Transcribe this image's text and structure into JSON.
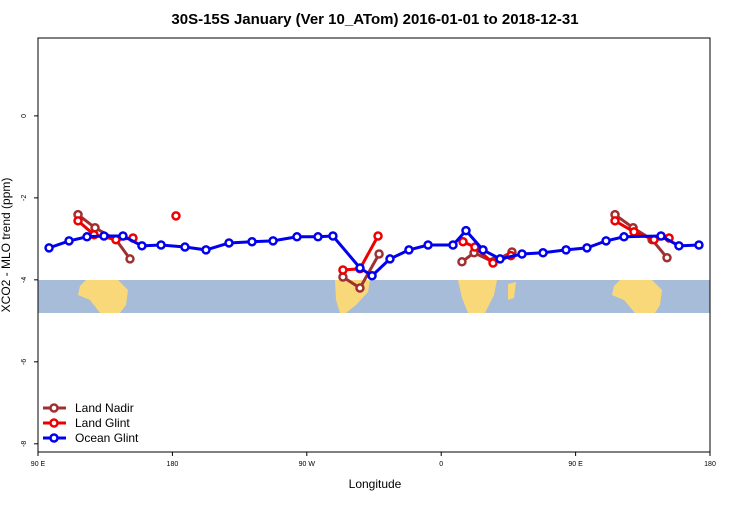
{
  "chart_data": {
    "type": "line",
    "title": "30S-15S January (Ver 10_ATom)   2016-01-01 to 2018-12-31",
    "x_label": "Longitude",
    "y_label": "XCO2 - MLO trend (ppm)",
    "xlim": [
      90,
      540
    ],
    "ylim": [
      -8.2,
      1.9
    ],
    "xticks": [
      {
        "value": 90,
        "label": "90 E"
      },
      {
        "value": 180,
        "label": "180"
      },
      {
        "value": 270,
        "label": "90 W"
      },
      {
        "value": 360,
        "label": "0"
      },
      {
        "value": 450,
        "label": "90 E"
      },
      {
        "value": 540,
        "label": "180"
      }
    ],
    "yticks": [
      0,
      -2,
      -4,
      -6,
      -8
    ],
    "legend": "bottom-left",
    "series": [
      {
        "name": "Land Nadir",
        "color": "#a03030",
        "x": [
          116.8,
          128.2,
          142.2,
          151.6,
          null,
          294.2,
          305.6,
          318.4,
          null,
          373.9,
          382,
          394.7,
          407.4,
          null,
          476.4,
          488.5,
          501.2,
          511.2
        ],
        "values": [
          -2.41,
          -2.73,
          -3.02,
          -3.49,
          null,
          -3.93,
          -4.2,
          -3.37,
          null,
          -3.56,
          -3.34,
          -3.56,
          -3.32,
          null,
          -2.41,
          -2.73,
          -3.02,
          -3.46
        ]
      },
      {
        "name": "Land Glint",
        "color": "#ee0000",
        "x": [
          116.8,
          127.5,
          142.2,
          153.6,
          null,
          182.4,
          null,
          294.2,
          305.6,
          317.7,
          null,
          374.6,
          382.6,
          394.7,
          406.7,
          null,
          476.4,
          489.1,
          502.5,
          512.6
        ],
        "values": [
          -2.56,
          -2.9,
          -3.02,
          -2.98,
          null,
          -2.44,
          null,
          -3.76,
          -3.73,
          -2.93,
          null,
          -3.07,
          -3.2,
          -3.59,
          -3.41,
          null,
          -2.56,
          -2.83,
          -3.02,
          -2.98
        ]
      },
      {
        "name": "Ocean Glint",
        "color": "#0000ee",
        "x": [
          97.4,
          110.8,
          122.8,
          134.2,
          146.9,
          159.6,
          172.4,
          188.4,
          202.5,
          217.9,
          233.3,
          247.4,
          263.4,
          277.5,
          287.5,
          305.6,
          313.7,
          325.7,
          338.4,
          351.2,
          367.9,
          376.6,
          388,
          399.4,
          414.1,
          428.2,
          443.6,
          457.6,
          470.4,
          482.4,
          507.2,
          519.2,
          532.6
        ],
        "values": [
          -3.22,
          -3.05,
          -2.95,
          -2.93,
          -2.93,
          -3.17,
          -3.15,
          -3.2,
          -3.27,
          -3.1,
          -3.07,
          -3.05,
          -2.95,
          -2.95,
          -2.93,
          -3.71,
          -3.9,
          -3.49,
          -3.27,
          -3.15,
          -3.15,
          -2.8,
          -3.27,
          -3.49,
          -3.37,
          -3.34,
          -3.27,
          -3.22,
          -3.05,
          -2.95,
          -2.93,
          -3.17,
          -3.15
        ]
      }
    ]
  }
}
